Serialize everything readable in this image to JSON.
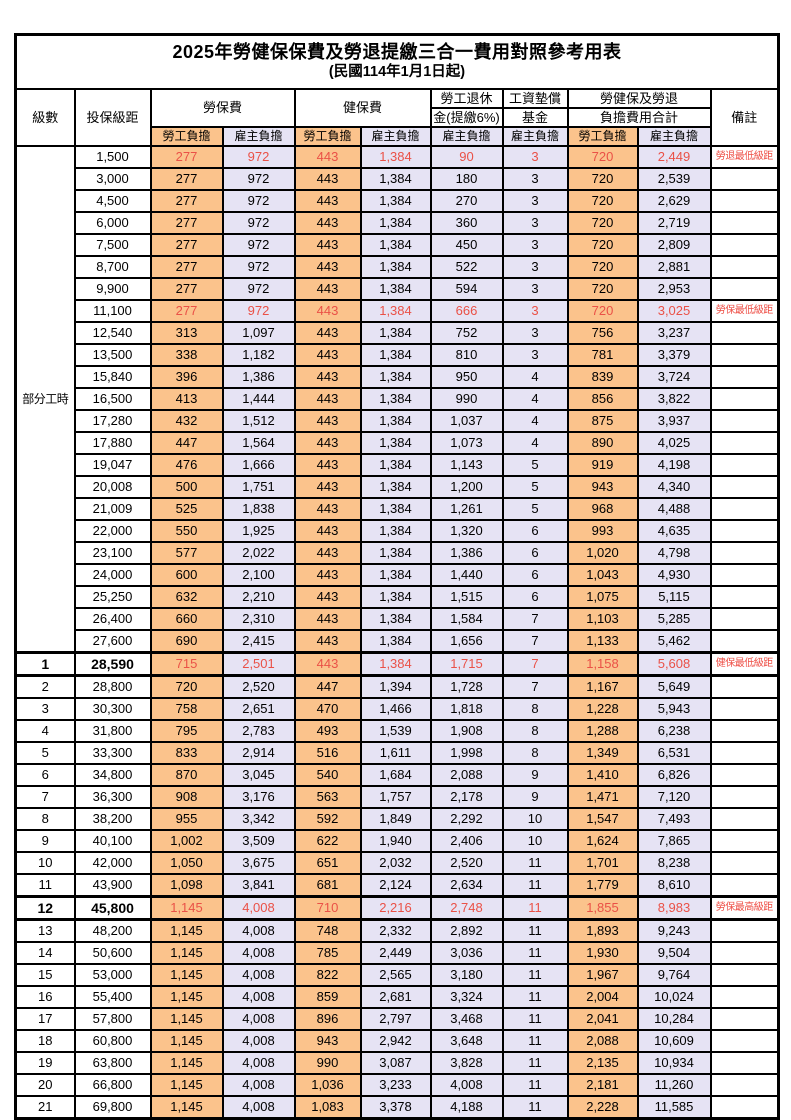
{
  "title": "2025年勞健保保費及勞退提繳三合一費用對照參考用表",
  "subtitle": "(民國114年1月1日起)",
  "header": {
    "level": "級數",
    "bracket": "投保級距",
    "labor_ins": "勞保費",
    "health_ins": "健保費",
    "pension_l1": "勞工退休",
    "pension_l2": "金(提繳6%)",
    "wage_l1": "工資墊償",
    "wage_l2": "基金",
    "total_l1": "勞健保及勞退",
    "total_l2": "負擔費用合計",
    "remark": "備註",
    "employee": "勞工負擔",
    "employer": "雇主負擔"
  },
  "group": {
    "label": "部分工時",
    "rowspan": 23
  },
  "colors": {
    "employee_bg": "#fbc38c",
    "employer_bg": "#e6e3f4",
    "highlight_red": "#ea5147",
    "border": "#000000",
    "background": "#ffffff"
  },
  "rows": [
    {
      "level": "",
      "bracket": "1,500",
      "values": [
        "277",
        "972",
        "443",
        "1,384",
        "90",
        "3",
        "720",
        "2,449"
      ],
      "remark": "勞退最低級距",
      "red": true,
      "box": false,
      "bold": false
    },
    {
      "level": "",
      "bracket": "3,000",
      "values": [
        "277",
        "972",
        "443",
        "1,384",
        "180",
        "3",
        "720",
        "2,539"
      ],
      "remark": "",
      "red": false,
      "box": false,
      "bold": false
    },
    {
      "level": "",
      "bracket": "4,500",
      "values": [
        "277",
        "972",
        "443",
        "1,384",
        "270",
        "3",
        "720",
        "2,629"
      ],
      "remark": "",
      "red": false,
      "box": false,
      "bold": false
    },
    {
      "level": "",
      "bracket": "6,000",
      "values": [
        "277",
        "972",
        "443",
        "1,384",
        "360",
        "3",
        "720",
        "2,719"
      ],
      "remark": "",
      "red": false,
      "box": false,
      "bold": false
    },
    {
      "level": "",
      "bracket": "7,500",
      "values": [
        "277",
        "972",
        "443",
        "1,384",
        "450",
        "3",
        "720",
        "2,809"
      ],
      "remark": "",
      "red": false,
      "box": false,
      "bold": false
    },
    {
      "level": "",
      "bracket": "8,700",
      "values": [
        "277",
        "972",
        "443",
        "1,384",
        "522",
        "3",
        "720",
        "2,881"
      ],
      "remark": "",
      "red": false,
      "box": false,
      "bold": false
    },
    {
      "level": "",
      "bracket": "9,900",
      "values": [
        "277",
        "972",
        "443",
        "1,384",
        "594",
        "3",
        "720",
        "2,953"
      ],
      "remark": "",
      "red": false,
      "box": false,
      "bold": false
    },
    {
      "level": "",
      "bracket": "11,100",
      "values": [
        "277",
        "972",
        "443",
        "1,384",
        "666",
        "3",
        "720",
        "3,025"
      ],
      "remark": "勞保最低級距",
      "red": true,
      "box": false,
      "bold": false
    },
    {
      "level": "",
      "bracket": "12,540",
      "values": [
        "313",
        "1,097",
        "443",
        "1,384",
        "752",
        "3",
        "756",
        "3,237"
      ],
      "remark": "",
      "red": false,
      "box": false,
      "bold": false
    },
    {
      "level": "",
      "bracket": "13,500",
      "values": [
        "338",
        "1,182",
        "443",
        "1,384",
        "810",
        "3",
        "781",
        "3,379"
      ],
      "remark": "",
      "red": false,
      "box": false,
      "bold": false
    },
    {
      "level": "",
      "bracket": "15,840",
      "values": [
        "396",
        "1,386",
        "443",
        "1,384",
        "950",
        "4",
        "839",
        "3,724"
      ],
      "remark": "",
      "red": false,
      "box": false,
      "bold": false
    },
    {
      "level": "",
      "bracket": "16,500",
      "values": [
        "413",
        "1,444",
        "443",
        "1,384",
        "990",
        "4",
        "856",
        "3,822"
      ],
      "remark": "",
      "red": false,
      "box": false,
      "bold": false
    },
    {
      "level": "",
      "bracket": "17,280",
      "values": [
        "432",
        "1,512",
        "443",
        "1,384",
        "1,037",
        "4",
        "875",
        "3,937"
      ],
      "remark": "",
      "red": false,
      "box": false,
      "bold": false
    },
    {
      "level": "",
      "bracket": "17,880",
      "values": [
        "447",
        "1,564",
        "443",
        "1,384",
        "1,073",
        "4",
        "890",
        "4,025"
      ],
      "remark": "",
      "red": false,
      "box": false,
      "bold": false
    },
    {
      "level": "",
      "bracket": "19,047",
      "values": [
        "476",
        "1,666",
        "443",
        "1,384",
        "1,143",
        "5",
        "919",
        "4,198"
      ],
      "remark": "",
      "red": false,
      "box": false,
      "bold": false
    },
    {
      "level": "",
      "bracket": "20,008",
      "values": [
        "500",
        "1,751",
        "443",
        "1,384",
        "1,200",
        "5",
        "943",
        "4,340"
      ],
      "remark": "",
      "red": false,
      "box": false,
      "bold": false
    },
    {
      "level": "",
      "bracket": "21,009",
      "values": [
        "525",
        "1,838",
        "443",
        "1,384",
        "1,261",
        "5",
        "968",
        "4,488"
      ],
      "remark": "",
      "red": false,
      "box": false,
      "bold": false
    },
    {
      "level": "",
      "bracket": "22,000",
      "values": [
        "550",
        "1,925",
        "443",
        "1,384",
        "1,320",
        "6",
        "993",
        "4,635"
      ],
      "remark": "",
      "red": false,
      "box": false,
      "bold": false
    },
    {
      "level": "",
      "bracket": "23,100",
      "values": [
        "577",
        "2,022",
        "443",
        "1,384",
        "1,386",
        "6",
        "1,020",
        "4,798"
      ],
      "remark": "",
      "red": false,
      "box": false,
      "bold": false
    },
    {
      "level": "",
      "bracket": "24,000",
      "values": [
        "600",
        "2,100",
        "443",
        "1,384",
        "1,440",
        "6",
        "1,043",
        "4,930"
      ],
      "remark": "",
      "red": false,
      "box": false,
      "bold": false
    },
    {
      "level": "",
      "bracket": "25,250",
      "values": [
        "632",
        "2,210",
        "443",
        "1,384",
        "1,515",
        "6",
        "1,075",
        "5,115"
      ],
      "remark": "",
      "red": false,
      "box": false,
      "bold": false
    },
    {
      "level": "",
      "bracket": "26,400",
      "values": [
        "660",
        "2,310",
        "443",
        "1,384",
        "1,584",
        "7",
        "1,103",
        "5,285"
      ],
      "remark": "",
      "red": false,
      "box": false,
      "bold": false
    },
    {
      "level": "",
      "bracket": "27,600",
      "values": [
        "690",
        "2,415",
        "443",
        "1,384",
        "1,656",
        "7",
        "1,133",
        "5,462"
      ],
      "remark": "",
      "red": false,
      "box": false,
      "bold": false
    },
    {
      "level": "1",
      "bracket": "28,590",
      "values": [
        "715",
        "2,501",
        "443",
        "1,384",
        "1,715",
        "7",
        "1,158",
        "5,608"
      ],
      "remark": "健保最低級距",
      "red": true,
      "box": true,
      "bold": true
    },
    {
      "level": "2",
      "bracket": "28,800",
      "values": [
        "720",
        "2,520",
        "447",
        "1,394",
        "1,728",
        "7",
        "1,167",
        "5,649"
      ],
      "remark": "",
      "red": false,
      "box": false,
      "bold": false
    },
    {
      "level": "3",
      "bracket": "30,300",
      "values": [
        "758",
        "2,651",
        "470",
        "1,466",
        "1,818",
        "8",
        "1,228",
        "5,943"
      ],
      "remark": "",
      "red": false,
      "box": false,
      "bold": false
    },
    {
      "level": "4",
      "bracket": "31,800",
      "values": [
        "795",
        "2,783",
        "493",
        "1,539",
        "1,908",
        "8",
        "1,288",
        "6,238"
      ],
      "remark": "",
      "red": false,
      "box": false,
      "bold": false
    },
    {
      "level": "5",
      "bracket": "33,300",
      "values": [
        "833",
        "2,914",
        "516",
        "1,611",
        "1,998",
        "8",
        "1,349",
        "6,531"
      ],
      "remark": "",
      "red": false,
      "box": false,
      "bold": false
    },
    {
      "level": "6",
      "bracket": "34,800",
      "values": [
        "870",
        "3,045",
        "540",
        "1,684",
        "2,088",
        "9",
        "1,410",
        "6,826"
      ],
      "remark": "",
      "red": false,
      "box": false,
      "bold": false
    },
    {
      "level": "7",
      "bracket": "36,300",
      "values": [
        "908",
        "3,176",
        "563",
        "1,757",
        "2,178",
        "9",
        "1,471",
        "7,120"
      ],
      "remark": "",
      "red": false,
      "box": false,
      "bold": false
    },
    {
      "level": "8",
      "bracket": "38,200",
      "values": [
        "955",
        "3,342",
        "592",
        "1,849",
        "2,292",
        "10",
        "1,547",
        "7,493"
      ],
      "remark": "",
      "red": false,
      "box": false,
      "bold": false
    },
    {
      "level": "9",
      "bracket": "40,100",
      "values": [
        "1,002",
        "3,509",
        "622",
        "1,940",
        "2,406",
        "10",
        "1,624",
        "7,865"
      ],
      "remark": "",
      "red": false,
      "box": false,
      "bold": false
    },
    {
      "level": "10",
      "bracket": "42,000",
      "values": [
        "1,050",
        "3,675",
        "651",
        "2,032",
        "2,520",
        "11",
        "1,701",
        "8,238"
      ],
      "remark": "",
      "red": false,
      "box": false,
      "bold": false
    },
    {
      "level": "11",
      "bracket": "43,900",
      "values": [
        "1,098",
        "3,841",
        "681",
        "2,124",
        "2,634",
        "11",
        "1,779",
        "8,610"
      ],
      "remark": "",
      "red": false,
      "box": false,
      "bold": false
    },
    {
      "level": "12",
      "bracket": "45,800",
      "values": [
        "1,145",
        "4,008",
        "710",
        "2,216",
        "2,748",
        "11",
        "1,855",
        "8,983"
      ],
      "remark": "勞保最高級距",
      "red": true,
      "box": true,
      "bold": true
    },
    {
      "level": "13",
      "bracket": "48,200",
      "values": [
        "1,145",
        "4,008",
        "748",
        "2,332",
        "2,892",
        "11",
        "1,893",
        "9,243"
      ],
      "remark": "",
      "red": false,
      "box": false,
      "bold": false
    },
    {
      "level": "14",
      "bracket": "50,600",
      "values": [
        "1,145",
        "4,008",
        "785",
        "2,449",
        "3,036",
        "11",
        "1,930",
        "9,504"
      ],
      "remark": "",
      "red": false,
      "box": false,
      "bold": false
    },
    {
      "level": "15",
      "bracket": "53,000",
      "values": [
        "1,145",
        "4,008",
        "822",
        "2,565",
        "3,180",
        "11",
        "1,967",
        "9,764"
      ],
      "remark": "",
      "red": false,
      "box": false,
      "bold": false
    },
    {
      "level": "16",
      "bracket": "55,400",
      "values": [
        "1,145",
        "4,008",
        "859",
        "2,681",
        "3,324",
        "11",
        "2,004",
        "10,024"
      ],
      "remark": "",
      "red": false,
      "box": false,
      "bold": false
    },
    {
      "level": "17",
      "bracket": "57,800",
      "values": [
        "1,145",
        "4,008",
        "896",
        "2,797",
        "3,468",
        "11",
        "2,041",
        "10,284"
      ],
      "remark": "",
      "red": false,
      "box": false,
      "bold": false
    },
    {
      "level": "18",
      "bracket": "60,800",
      "values": [
        "1,145",
        "4,008",
        "943",
        "2,942",
        "3,648",
        "11",
        "2,088",
        "10,609"
      ],
      "remark": "",
      "red": false,
      "box": false,
      "bold": false
    },
    {
      "level": "19",
      "bracket": "63,800",
      "values": [
        "1,145",
        "4,008",
        "990",
        "3,087",
        "3,828",
        "11",
        "2,135",
        "10,934"
      ],
      "remark": "",
      "red": false,
      "box": false,
      "bold": false
    },
    {
      "level": "20",
      "bracket": "66,800",
      "values": [
        "1,145",
        "4,008",
        "1,036",
        "3,233",
        "4,008",
        "11",
        "2,181",
        "11,260"
      ],
      "remark": "",
      "red": false,
      "box": false,
      "bold": false
    },
    {
      "level": "21",
      "bracket": "69,800",
      "values": [
        "1,145",
        "4,008",
        "1,083",
        "3,378",
        "4,188",
        "11",
        "2,228",
        "11,585"
      ],
      "remark": "",
      "red": false,
      "box": false,
      "bold": false
    }
  ],
  "column_styles": [
    "emp",
    "er",
    "emp",
    "er",
    "er",
    "er",
    "emp",
    "er"
  ]
}
